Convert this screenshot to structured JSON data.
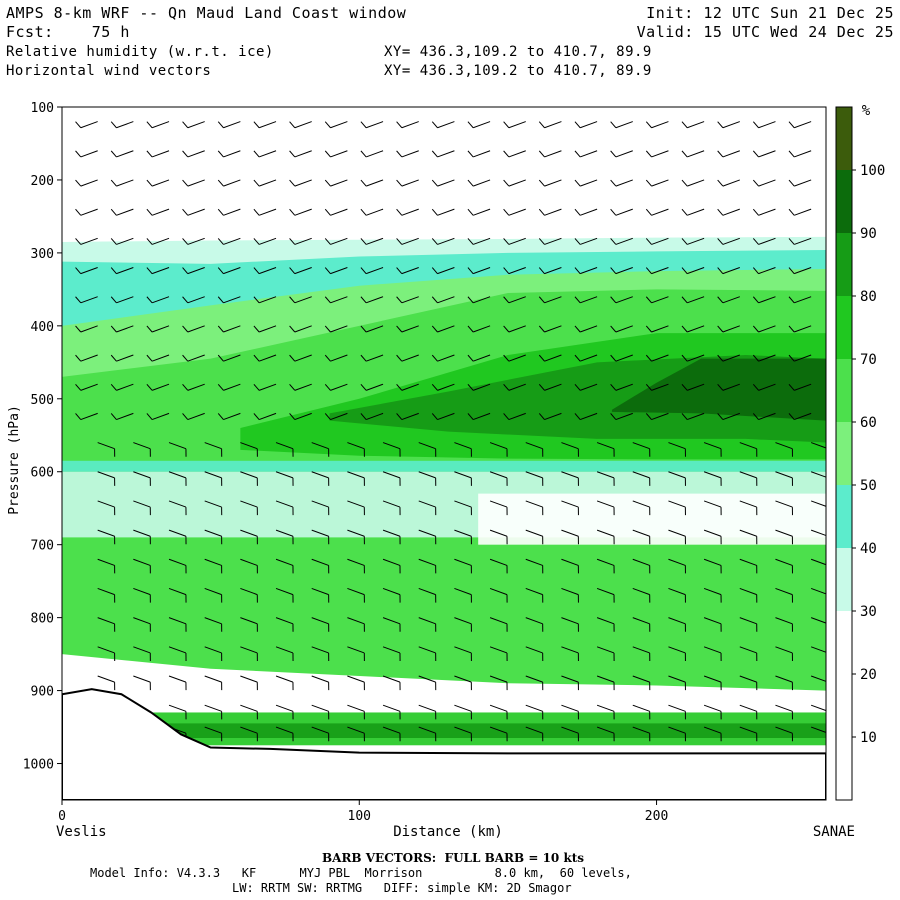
{
  "header": {
    "title": "AMPS 8-km WRF -- Qn Maud Land Coast window",
    "fcst_label": "Fcst:",
    "fcst_value": "75 h",
    "field1": "Relative humidity (w.r.t. ice)",
    "field2": "Horizontal wind vectors",
    "init": "Init: 12 UTC Sun 21 Dec 25",
    "valid": "Valid: 15 UTC Wed 24 Dec 25",
    "xy1": "XY= 436.3,109.2 to 410.7, 89.9",
    "xy2": "XY= 436.3,109.2 to 410.7, 89.9"
  },
  "footer": {
    "barb_note": "BARB VECTORS:  FULL BARB = 10 kts",
    "model_info": "Model Info: V4.3.3   KF      MYJ PBL  Morrison          8.0 km,  60 levels,",
    "physics": "LW: RRTM SW: RRTMG   DIFF: simple KM: 2D Smagor"
  },
  "colors": {
    "rh_0_30": "#ffffff",
    "rh_30_40": "#c8fae8",
    "rh_40_50": "#5ceccc",
    "rh_50_60": "#7cf07c",
    "rh_60_70": "#4ce04c",
    "rh_70_80": "#20c820",
    "rh_80_90": "#169c16",
    "rh_90_100": "#0c6c0c",
    "rh_100_plus": "#3c5c0c",
    "terrain": "#ffffff"
  },
  "chart_data": {
    "type": "heatmap",
    "xlabel": "Distance (km)",
    "ylabel": "Pressure (hPa)",
    "xlim": [
      0,
      257
    ],
    "ylim": [
      1050,
      100
    ],
    "x_ticks": [
      0,
      100,
      200
    ],
    "y_ticks": [
      100,
      200,
      300,
      400,
      500,
      600,
      700,
      800,
      900,
      1000
    ],
    "left_endpoint": "Veslis",
    "right_endpoint": "SANAE",
    "colorbar_unit": "%",
    "colorbar_levels": [
      10,
      20,
      30,
      40,
      50,
      60,
      70,
      80,
      90,
      100
    ],
    "rh_layers": [
      {
        "range": "30-40",
        "top": [
          [
            0,
            285
          ],
          [
            50,
            283
          ],
          [
            100,
            282
          ],
          [
            150,
            281
          ],
          [
            200,
            279
          ],
          [
            257,
            278
          ]
        ],
        "bottom": [
          [
            0,
            730
          ],
          [
            50,
            745
          ],
          [
            100,
            765
          ],
          [
            150,
            785
          ],
          [
            200,
            790
          ],
          [
            257,
            790
          ]
        ]
      },
      {
        "range": "40-50",
        "top": [
          [
            0,
            312
          ],
          [
            50,
            315
          ],
          [
            100,
            305
          ],
          [
            150,
            300
          ],
          [
            200,
            298
          ],
          [
            257,
            296
          ]
        ],
        "bottom": [
          [
            0,
            760
          ],
          [
            50,
            772
          ],
          [
            100,
            780
          ],
          [
            150,
            808
          ],
          [
            200,
            808
          ],
          [
            257,
            810
          ]
        ]
      },
      {
        "range": "50-60",
        "top": [
          [
            0,
            400
          ],
          [
            50,
            372
          ],
          [
            100,
            345
          ],
          [
            150,
            330
          ],
          [
            200,
            325
          ],
          [
            257,
            322
          ]
        ],
        "bottom": [
          [
            0,
            800
          ],
          [
            50,
            815
          ],
          [
            100,
            825
          ],
          [
            150,
            830
          ],
          [
            200,
            830
          ],
          [
            257,
            830
          ]
        ]
      },
      {
        "range": "60-70",
        "top": [
          [
            0,
            470
          ],
          [
            50,
            445
          ],
          [
            100,
            400
          ],
          [
            150,
            355
          ],
          [
            200,
            350
          ],
          [
            257,
            352
          ]
        ],
        "bottom": [
          [
            0,
            850
          ],
          [
            50,
            870
          ],
          [
            100,
            880
          ],
          [
            150,
            890
          ],
          [
            200,
            893
          ],
          [
            257,
            900
          ]
        ]
      },
      {
        "range": "70-80",
        "top": [
          [
            60,
            540
          ],
          [
            100,
            500
          ],
          [
            150,
            440
          ],
          [
            200,
            410
          ],
          [
            257,
            410
          ]
        ],
        "bottom": [
          [
            60,
            570
          ],
          [
            100,
            578
          ],
          [
            150,
            582
          ],
          [
            200,
            583
          ],
          [
            257,
            583
          ]
        ]
      },
      {
        "range": "80-90",
        "top": [
          [
            90,
            520
          ],
          [
            130,
            490
          ],
          [
            180,
            450
          ],
          [
            230,
            440
          ],
          [
            257,
            445
          ]
        ],
        "bottom": [
          [
            90,
            530
          ],
          [
            130,
            545
          ],
          [
            180,
            555
          ],
          [
            230,
            555
          ],
          [
            257,
            560
          ]
        ]
      },
      {
        "range": "90-100",
        "top": [
          [
            185,
            515
          ],
          [
            200,
            478
          ],
          [
            215,
            445
          ],
          [
            257,
            445
          ]
        ],
        "bottom": [
          [
            185,
            518
          ],
          [
            215,
            520
          ],
          [
            257,
            530
          ]
        ]
      }
    ],
    "moist_layers_pressure_bands": [
      {
        "range": "40-50",
        "level_range": [
          585,
          600
        ]
      },
      {
        "range": "30-40",
        "level_range": [
          600,
          690
        ]
      },
      {
        "range": "0-30",
        "level_range": [
          630,
          700
        ],
        "x_range": [
          140,
          257
        ]
      },
      {
        "range": "70-80",
        "level_range": [
          930,
          975
        ]
      },
      {
        "range": "80-90",
        "level_range": [
          945,
          965
        ]
      }
    ],
    "terrain_surface": [
      [
        0,
        905
      ],
      [
        10,
        898
      ],
      [
        20,
        905
      ],
      [
        30,
        930
      ],
      [
        40,
        960
      ],
      [
        50,
        978
      ],
      [
        70,
        980
      ],
      [
        100,
        985
      ],
      [
        150,
        986
      ],
      [
        200,
        986
      ],
      [
        257,
        986
      ]
    ],
    "wind_barbs": {
      "columns_km": [
        12,
        24,
        36,
        48,
        60,
        72,
        84,
        96,
        108,
        120,
        132,
        144,
        156,
        168,
        180,
        192,
        204,
        216,
        228,
        240,
        252
      ],
      "levels_hPa": [
        120,
        160,
        200,
        240,
        280,
        320,
        360,
        400,
        440,
        480,
        520,
        560,
        600,
        640,
        680,
        720,
        760,
        800,
        840,
        880,
        920,
        950
      ],
      "upper_direction_deg": 250,
      "lower_direction_deg": 110
    }
  }
}
